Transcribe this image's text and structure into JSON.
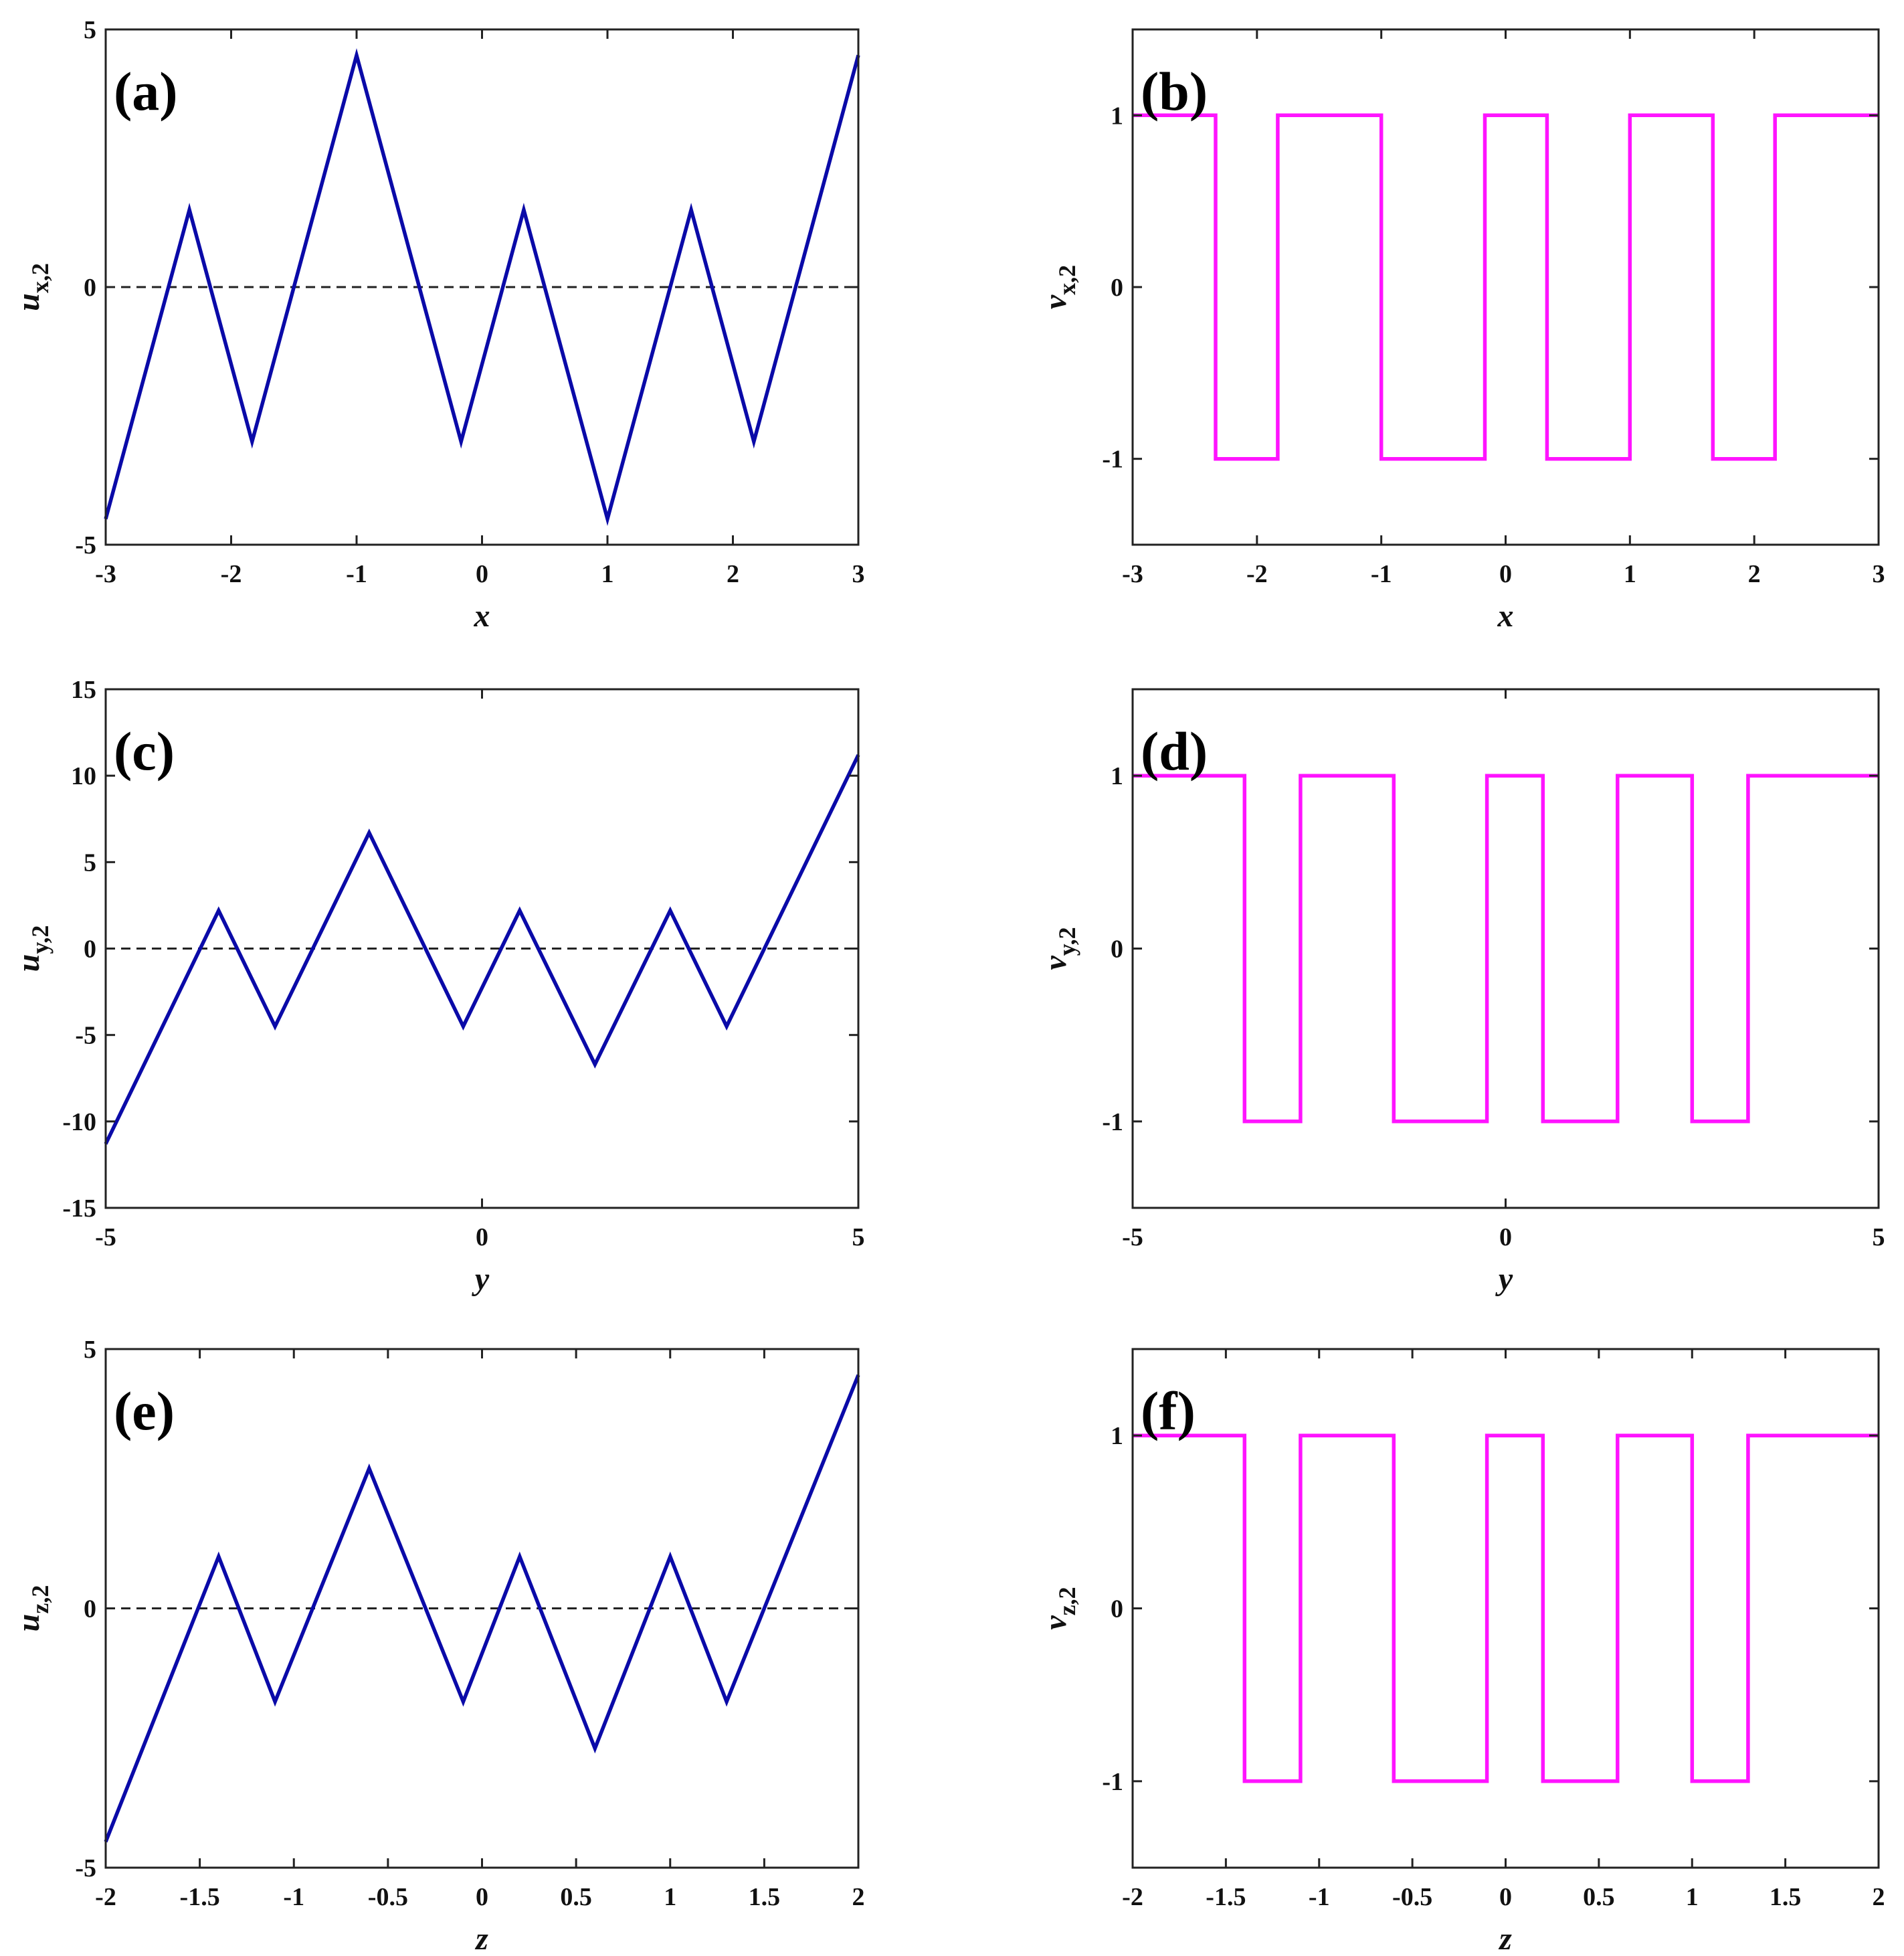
{
  "colors": {
    "u_series": "#0a0aa8",
    "v_series": "#ff14ff",
    "zero_line": "#222222"
  },
  "chart_data": [
    {
      "id": "a",
      "type": "line",
      "panel_label": "(a)",
      "xlabel": "x",
      "ylabel_main": "u",
      "ylabel_sub": "x,2",
      "xlim": [
        -3,
        3
      ],
      "ylim": [
        -5,
        5
      ],
      "xticks": [
        "-3",
        "-2",
        "-1",
        "0",
        "1",
        "2",
        "3"
      ],
      "xtick_values": [
        -3,
        -2,
        -1,
        0,
        1,
        2,
        3
      ],
      "yticks": [
        "-5",
        "0",
        "5"
      ],
      "ytick_values": [
        -5,
        0,
        5
      ],
      "zero_line": true,
      "series": [
        {
          "color": "u_series",
          "x": [
            -3,
            -2.333,
            -1.833,
            -1,
            -0.167,
            0.333,
            1,
            1.667,
            2.167,
            3
          ],
          "y": [
            -4.5,
            1.5,
            -3.0,
            4.5,
            -3.0,
            1.5,
            -4.5,
            1.5,
            -3.0,
            4.5
          ]
        }
      ]
    },
    {
      "id": "b",
      "type": "line",
      "panel_label": "(b)",
      "xlabel": "x",
      "ylabel_main": "v",
      "ylabel_sub": "x,2",
      "xlim": [
        -3,
        3
      ],
      "ylim": [
        -1.5,
        1.5
      ],
      "xticks": [
        "-3",
        "-2",
        "-1",
        "0",
        "1",
        "2",
        "3"
      ],
      "xtick_values": [
        -3,
        -2,
        -1,
        0,
        1,
        2,
        3
      ],
      "yticks": [
        "-1",
        "0",
        "1"
      ],
      "ytick_values": [
        -1,
        0,
        1
      ],
      "zero_line": false,
      "series": [
        {
          "color": "v_series",
          "x": [
            -3,
            -2.333,
            -2.333,
            -1.833,
            -1.833,
            -1,
            -1,
            -0.167,
            -0.167,
            0.333,
            0.333,
            1,
            1,
            1.667,
            1.667,
            2.167,
            2.167,
            3
          ],
          "y": [
            1,
            1,
            -1,
            -1,
            1,
            1,
            -1,
            -1,
            1,
            1,
            -1,
            -1,
            1,
            1,
            -1,
            -1,
            1,
            1
          ]
        }
      ]
    },
    {
      "id": "c",
      "type": "line",
      "panel_label": "(c)",
      "xlabel": "y",
      "ylabel_main": "u",
      "ylabel_sub": "y,2",
      "xlim": [
        -5,
        5
      ],
      "ylim": [
        -15,
        15
      ],
      "xticks": [
        "-5",
        "0",
        "5"
      ],
      "xtick_values": [
        -5,
        0,
        5
      ],
      "yticks": [
        "-15",
        "-10",
        "-5",
        "0",
        "5",
        "10",
        "15"
      ],
      "ytick_values": [
        -15,
        -10,
        -5,
        0,
        5,
        10,
        15
      ],
      "zero_line": true,
      "series": [
        {
          "color": "u_series",
          "x": [
            -5,
            -3.5,
            -2.75,
            -1.5,
            -0.25,
            0.5,
            1.5,
            2.5,
            3.25,
            5
          ],
          "y": [
            -11.3,
            2.2,
            -4.5,
            6.7,
            -4.5,
            2.2,
            -6.7,
            2.2,
            -4.5,
            11.2
          ]
        }
      ]
    },
    {
      "id": "d",
      "type": "line",
      "panel_label": "(d)",
      "xlabel": "y",
      "ylabel_main": "v",
      "ylabel_sub": "y,2",
      "xlim": [
        -5,
        5
      ],
      "ylim": [
        -1.5,
        1.5
      ],
      "xticks": [
        "-5",
        "0",
        "5"
      ],
      "xtick_values": [
        -5,
        0,
        5
      ],
      "yticks": [
        "-1",
        "0",
        "1"
      ],
      "ytick_values": [
        -1,
        0,
        1
      ],
      "zero_line": false,
      "series": [
        {
          "color": "v_series",
          "x": [
            -5,
            -3.5,
            -3.5,
            -2.75,
            -2.75,
            -1.5,
            -1.5,
            -0.25,
            -0.25,
            0.5,
            0.5,
            1.5,
            1.5,
            2.5,
            2.5,
            3.25,
            3.25,
            5
          ],
          "y": [
            1,
            1,
            -1,
            -1,
            1,
            1,
            -1,
            -1,
            1,
            1,
            -1,
            -1,
            1,
            1,
            -1,
            -1,
            1,
            1
          ]
        }
      ]
    },
    {
      "id": "e",
      "type": "line",
      "panel_label": "(e)",
      "xlabel": "z",
      "ylabel_main": "u",
      "ylabel_sub": "z,2",
      "xlim": [
        -2,
        2
      ],
      "ylim": [
        -5,
        5
      ],
      "xticks": [
        "-2",
        "-1.5",
        "-1",
        "-0.5",
        "0",
        "0.5",
        "1",
        "1.5",
        "2"
      ],
      "xtick_values": [
        -2,
        -1.5,
        -1,
        -0.5,
        0,
        0.5,
        1,
        1.5,
        2
      ],
      "yticks": [
        "-5",
        "0",
        "5"
      ],
      "ytick_values": [
        -5,
        0,
        5
      ],
      "zero_line": true,
      "series": [
        {
          "color": "u_series",
          "x": [
            -2,
            -1.4,
            -1.1,
            -0.6,
            -0.1,
            0.2,
            0.6,
            1.0,
            1.3,
            2
          ],
          "y": [
            -4.5,
            1.0,
            -1.8,
            2.7,
            -1.8,
            1.0,
            -2.7,
            1.0,
            -1.8,
            4.5
          ]
        }
      ]
    },
    {
      "id": "f",
      "type": "line",
      "panel_label": "(f)",
      "xlabel": "z",
      "ylabel_main": "v",
      "ylabel_sub": "z,2",
      "xlim": [
        -2,
        2
      ],
      "ylim": [
        -1.5,
        1.5
      ],
      "xticks": [
        "-2",
        "-1.5",
        "-1",
        "-0.5",
        "0",
        "0.5",
        "1",
        "1.5",
        "2"
      ],
      "xtick_values": [
        -2,
        -1.5,
        -1,
        -0.5,
        0,
        0.5,
        1,
        1.5,
        2
      ],
      "yticks": [
        "-1",
        "0",
        "1"
      ],
      "ytick_values": [
        -1,
        0,
        1
      ],
      "zero_line": false,
      "series": [
        {
          "color": "v_series",
          "x": [
            -2,
            -1.4,
            -1.4,
            -1.1,
            -1.1,
            -0.6,
            -0.6,
            -0.1,
            -0.1,
            0.2,
            0.2,
            0.6,
            0.6,
            1.0,
            1.0,
            1.3,
            1.3,
            2
          ],
          "y": [
            1,
            1,
            -1,
            -1,
            1,
            1,
            -1,
            -1,
            1,
            1,
            -1,
            -1,
            1,
            1,
            -1,
            -1,
            1,
            1
          ]
        }
      ]
    }
  ]
}
